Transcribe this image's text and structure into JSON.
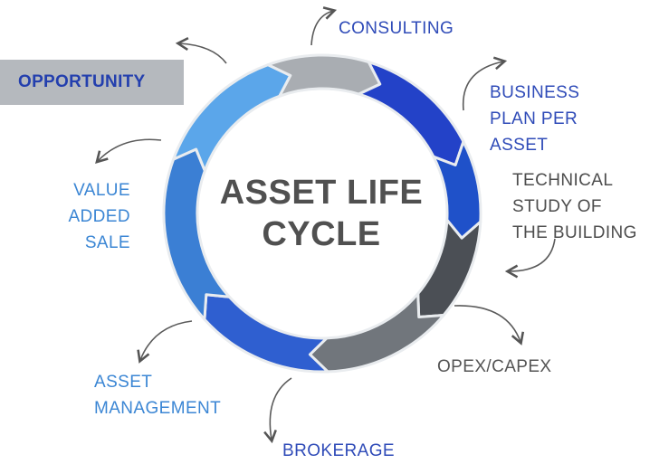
{
  "title": "ASSET LIFE\nCYCLE",
  "opportunity": "OPPORTUNITY",
  "stages": [
    {
      "label": "CONSULTING",
      "color": "#2342c8"
    },
    {
      "label": "BUSINESS\nPLAN PER\nASSET",
      "color": "#1f51c9"
    },
    {
      "label": "TECHNICAL\nSTUDY OF\nTHE BUILDING",
      "color": "#4b4f55"
    },
    {
      "label": "OPEX/CAPEX",
      "color": "#71767c"
    },
    {
      "label": "BROKERAGE",
      "color": "#2f5fd0"
    },
    {
      "label": "ASSET\nMANAGEMENT",
      "color": "#3b7fd4"
    },
    {
      "label": "VALUE\nADDED\nSALE",
      "color": "#5ba6ea"
    },
    {
      "label": "OPPORTUNITY",
      "color": "#a9adb2"
    }
  ]
}
